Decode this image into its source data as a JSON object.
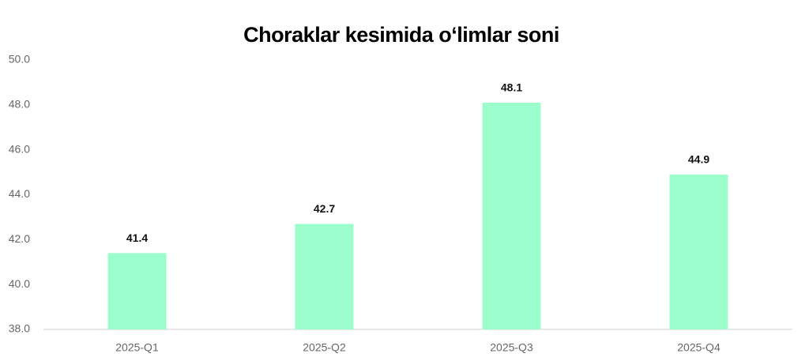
{
  "chart_data": {
    "type": "bar",
    "title": "Choraklar kesimida o‘limlar soni",
    "categories": [
      "2025-Q1",
      "2025-Q2",
      "2025-Q3",
      "2025-Q4"
    ],
    "values": [
      41.4,
      42.7,
      48.1,
      44.9
    ],
    "color": "#9bfdcc",
    "ylim": [
      38,
      50
    ],
    "yticks": [
      {
        "value": 38,
        "label": "38.0"
      },
      {
        "value": 40,
        "label": "40.0"
      },
      {
        "value": 42,
        "label": "42.0"
      },
      {
        "value": 44,
        "label": "44.0"
      },
      {
        "value": 46,
        "label": "46.0"
      },
      {
        "value": 48,
        "label": "48.0"
      },
      {
        "value": 50,
        "label": "50.0"
      }
    ],
    "grid": false
  }
}
